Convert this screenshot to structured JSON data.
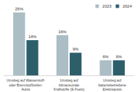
{
  "chart_data": {
    "type": "bar",
    "categories": [
      "Umstieg auf Wasserstoff-\noder Brennstoffzellen-\nAutos",
      "Umstieg auf\nklimaneutrale\nKraftstoffe (E-Fuels)",
      "Umstieg auf\nbatteriebetriebene\nElektroautos"
    ],
    "series": [
      {
        "name": "2023",
        "color": "#abbdc5",
        "values": [
          25,
          16,
          6
        ],
        "value_labels": [
          "25%",
          "16%",
          "6%"
        ]
      },
      {
        "name": "2024",
        "color": "#2d5f6b",
        "values": [
          14,
          9,
          6
        ],
        "value_labels": [
          "14%",
          "9%",
          "6%"
        ]
      }
    ],
    "ylim": [
      0,
      25
    ],
    "data_labels": true,
    "tick_labels": "x",
    "legend": "top-right",
    "grid": false
  }
}
